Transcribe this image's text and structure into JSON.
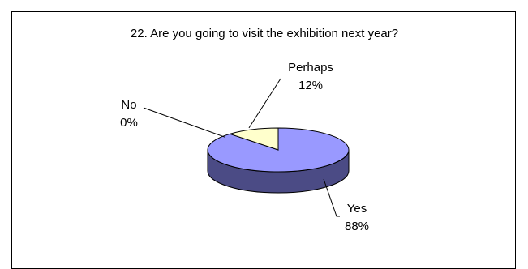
{
  "chart_data": {
    "type": "pie",
    "title": "22. Are you going to visit the exhibition next year?",
    "three_d": true,
    "slices": [
      {
        "label": "Yes",
        "value": 88,
        "value_label": "88%",
        "color": "#9999ff",
        "side_color": "#4b4b85"
      },
      {
        "label": "No",
        "value": 0,
        "value_label": "0%",
        "color": "#993366",
        "side_color": "#4c1933"
      },
      {
        "label": "Perhaps",
        "value": 12,
        "value_label": "12%",
        "color": "#ffffcc",
        "side_color": "#8c8c6e"
      }
    ],
    "legend": "none",
    "labels_with_leader_lines": true
  }
}
